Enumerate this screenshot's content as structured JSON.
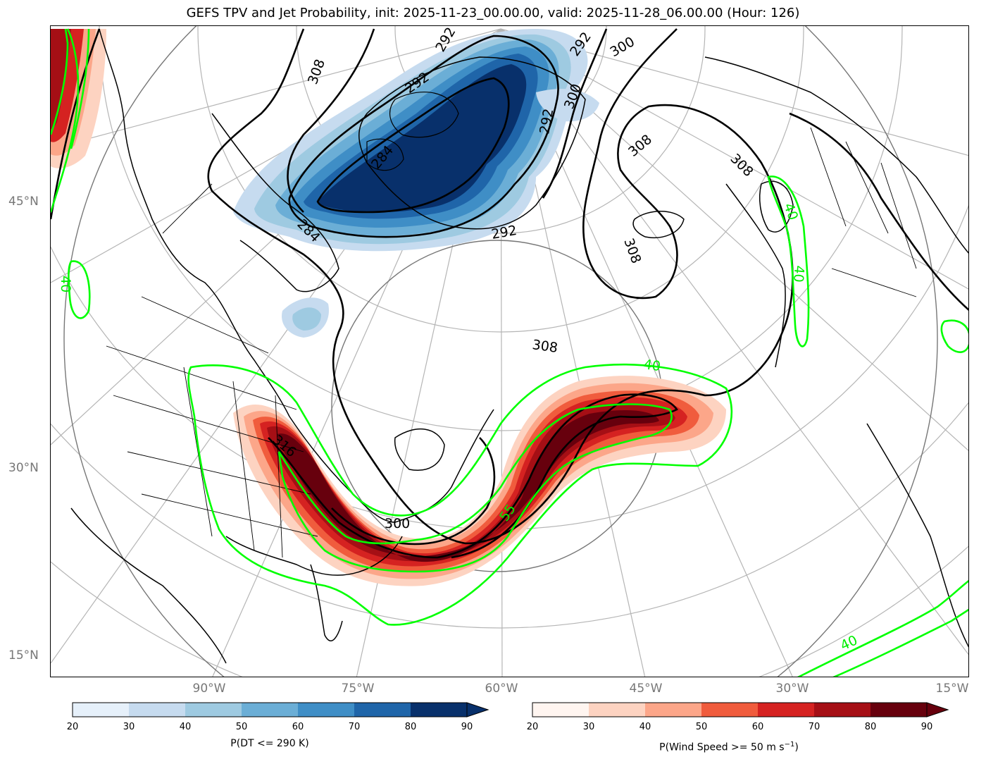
{
  "title": "GEFS TPV and Jet Probability, init: 2025-11-23_00.00.00, valid: 2025-11-28_06.00.00 (Hour: 126)",
  "lat_labels": [
    "45°N",
    "30°N",
    "15°N"
  ],
  "lon_labels": [
    "90°W",
    "75°W",
    "60°W",
    "45°W",
    "30°W",
    "15°W"
  ],
  "contour_labels": {
    "theta": [
      "292",
      "292",
      "292",
      "300",
      "300",
      "292",
      "308",
      "308",
      "308",
      "284",
      "284",
      "292",
      "308",
      "308",
      "316",
      "300"
    ],
    "wind": [
      "40",
      "40",
      "40",
      "40",
      "40",
      "55"
    ]
  },
  "colorbar_left": {
    "ticks": [
      "20",
      "30",
      "40",
      "50",
      "60",
      "70",
      "80",
      "90"
    ],
    "colors": [
      "#e6f0fa",
      "#c6dbef",
      "#9ecae1",
      "#6baed6",
      "#3f8ec6",
      "#1f65a9",
      "#08306b"
    ],
    "label": "P(DT <= 290 K)"
  },
  "colorbar_right": {
    "ticks": [
      "20",
      "30",
      "40",
      "50",
      "60",
      "70",
      "80",
      "90"
    ],
    "colors": [
      "#fff5f0",
      "#fdd3c1",
      "#fca689",
      "#f05c3d",
      "#d52221",
      "#a50f15",
      "#67000d"
    ],
    "label_main": "P(Wind Speed >= 50 m s",
    "label_sup": "−1",
    "label_end": ")"
  }
}
